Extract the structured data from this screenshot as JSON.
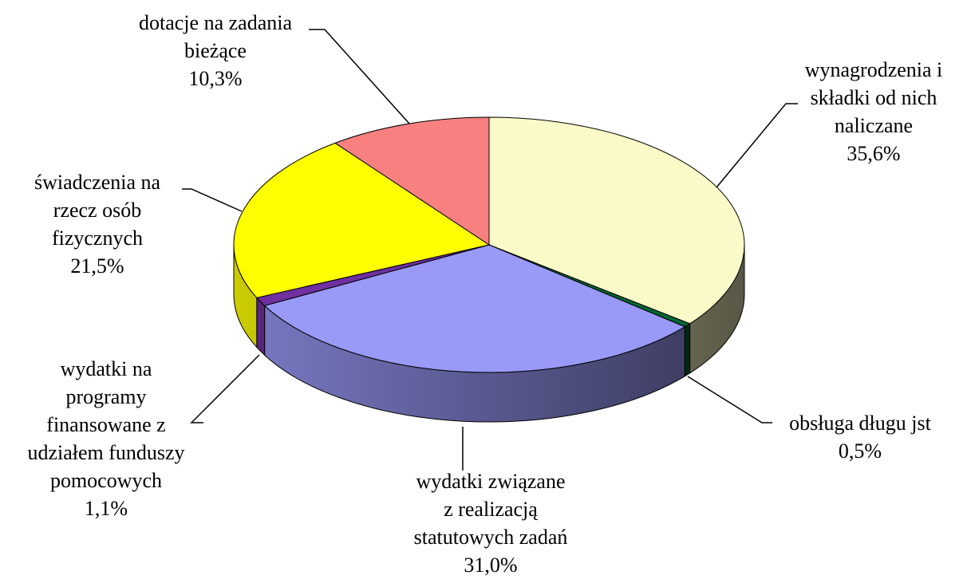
{
  "chart_data": {
    "type": "pie",
    "categories": [
      "wynagrodzenia i\nskładki od nich\nnaliczane",
      "obsługa długu jst",
      "wydatki związane\nz realizacją\nstatutowych zadań",
      "wydatki na\nprogramy\nfinansowane z\nudziałem funduszy\npomocowych",
      "świadczenia na\nrzecz osób\nfizycznych",
      "dotacje na zadania\nbieżące"
    ],
    "values": [
      35.6,
      0.5,
      31.0,
      1.1,
      21.5,
      10.3
    ],
    "value_labels": [
      "35,6%",
      "0,5%",
      "31,0%",
      "1,1%",
      "21,5%",
      "10,3%"
    ],
    "colors": [
      "#fafac8",
      "#006633",
      "#9999f8",
      "#7030a0",
      "#ffff00",
      "#f88080"
    ]
  }
}
